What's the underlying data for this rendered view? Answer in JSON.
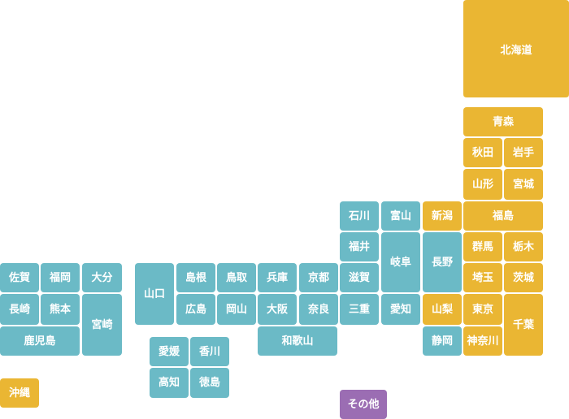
{
  "colors": {
    "blue": "#6bbac6",
    "yellow": "#eab633",
    "purple": "#9b6db3",
    "text": "#ffffff"
  },
  "prefectures": {
    "hokkaido": "北海道",
    "aomori": "青森",
    "akita": "秋田",
    "iwate": "岩手",
    "yamagata": "山形",
    "miyagi": "宮城",
    "niigata": "新潟",
    "fukushima": "福島",
    "gunma": "群馬",
    "tochigi": "栃木",
    "nagano": "長野",
    "saitama": "埼玉",
    "ibaraki": "茨城",
    "yamanashi": "山梨",
    "tokyo": "東京",
    "chiba": "千葉",
    "shizuoka": "静岡",
    "kanagawa": "神奈川",
    "ishikawa": "石川",
    "toyama": "富山",
    "fukui": "福井",
    "gifu": "岐阜",
    "shiga": "滋賀",
    "mie": "三重",
    "aichi": "愛知",
    "hyogo": "兵庫",
    "kyoto": "京都",
    "osaka": "大阪",
    "nara": "奈良",
    "wakayama": "和歌山",
    "shimane": "島根",
    "tottori": "鳥取",
    "yamaguchi": "山口",
    "hiroshima": "広島",
    "okayama": "岡山",
    "ehime": "愛媛",
    "kagawa": "香川",
    "kochi": "高知",
    "tokushima": "徳島",
    "saga": "佐賀",
    "fukuoka": "福岡",
    "oita": "大分",
    "nagasaki": "長崎",
    "kumamoto": "熊本",
    "miyazaki": "宮崎",
    "kagoshima": "鹿児島",
    "okinawa": "沖縄",
    "other": "その他"
  }
}
